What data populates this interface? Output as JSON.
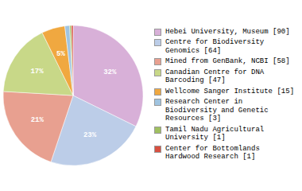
{
  "chart_data": {
    "type": "pie",
    "categories": [
      "Hebei University, Museum [90]",
      "Centre for Biodiversity\nGenomics [64]",
      "Mined from GenBank, NCBI [58]",
      "Canadian Centre for DNA\nBarcoding [47]",
      "Wellcome Sanger Institute [15]",
      "Research Center in\nBiodiversity and Genetic\nResources [3]",
      "Tamil Nadu Agricultural\nUniversity [1]",
      "Center for Bottomlands\nHardwood Research [1]"
    ],
    "values": [
      32.3,
      22.9,
      20.8,
      16.8,
      5.4,
      1.1,
      0.4,
      0.4
    ],
    "value_labels": [
      "32%",
      "23%",
      "21%",
      "17%",
      "5%",
      null,
      null,
      null
    ],
    "colors": [
      "#d8b0d8",
      "#bccde8",
      "#e8a090",
      "#c8d888",
      "#f0a840",
      "#a0c4e0",
      "#a0c060",
      "#d85040"
    ],
    "data_labels": true,
    "legend": "right"
  }
}
